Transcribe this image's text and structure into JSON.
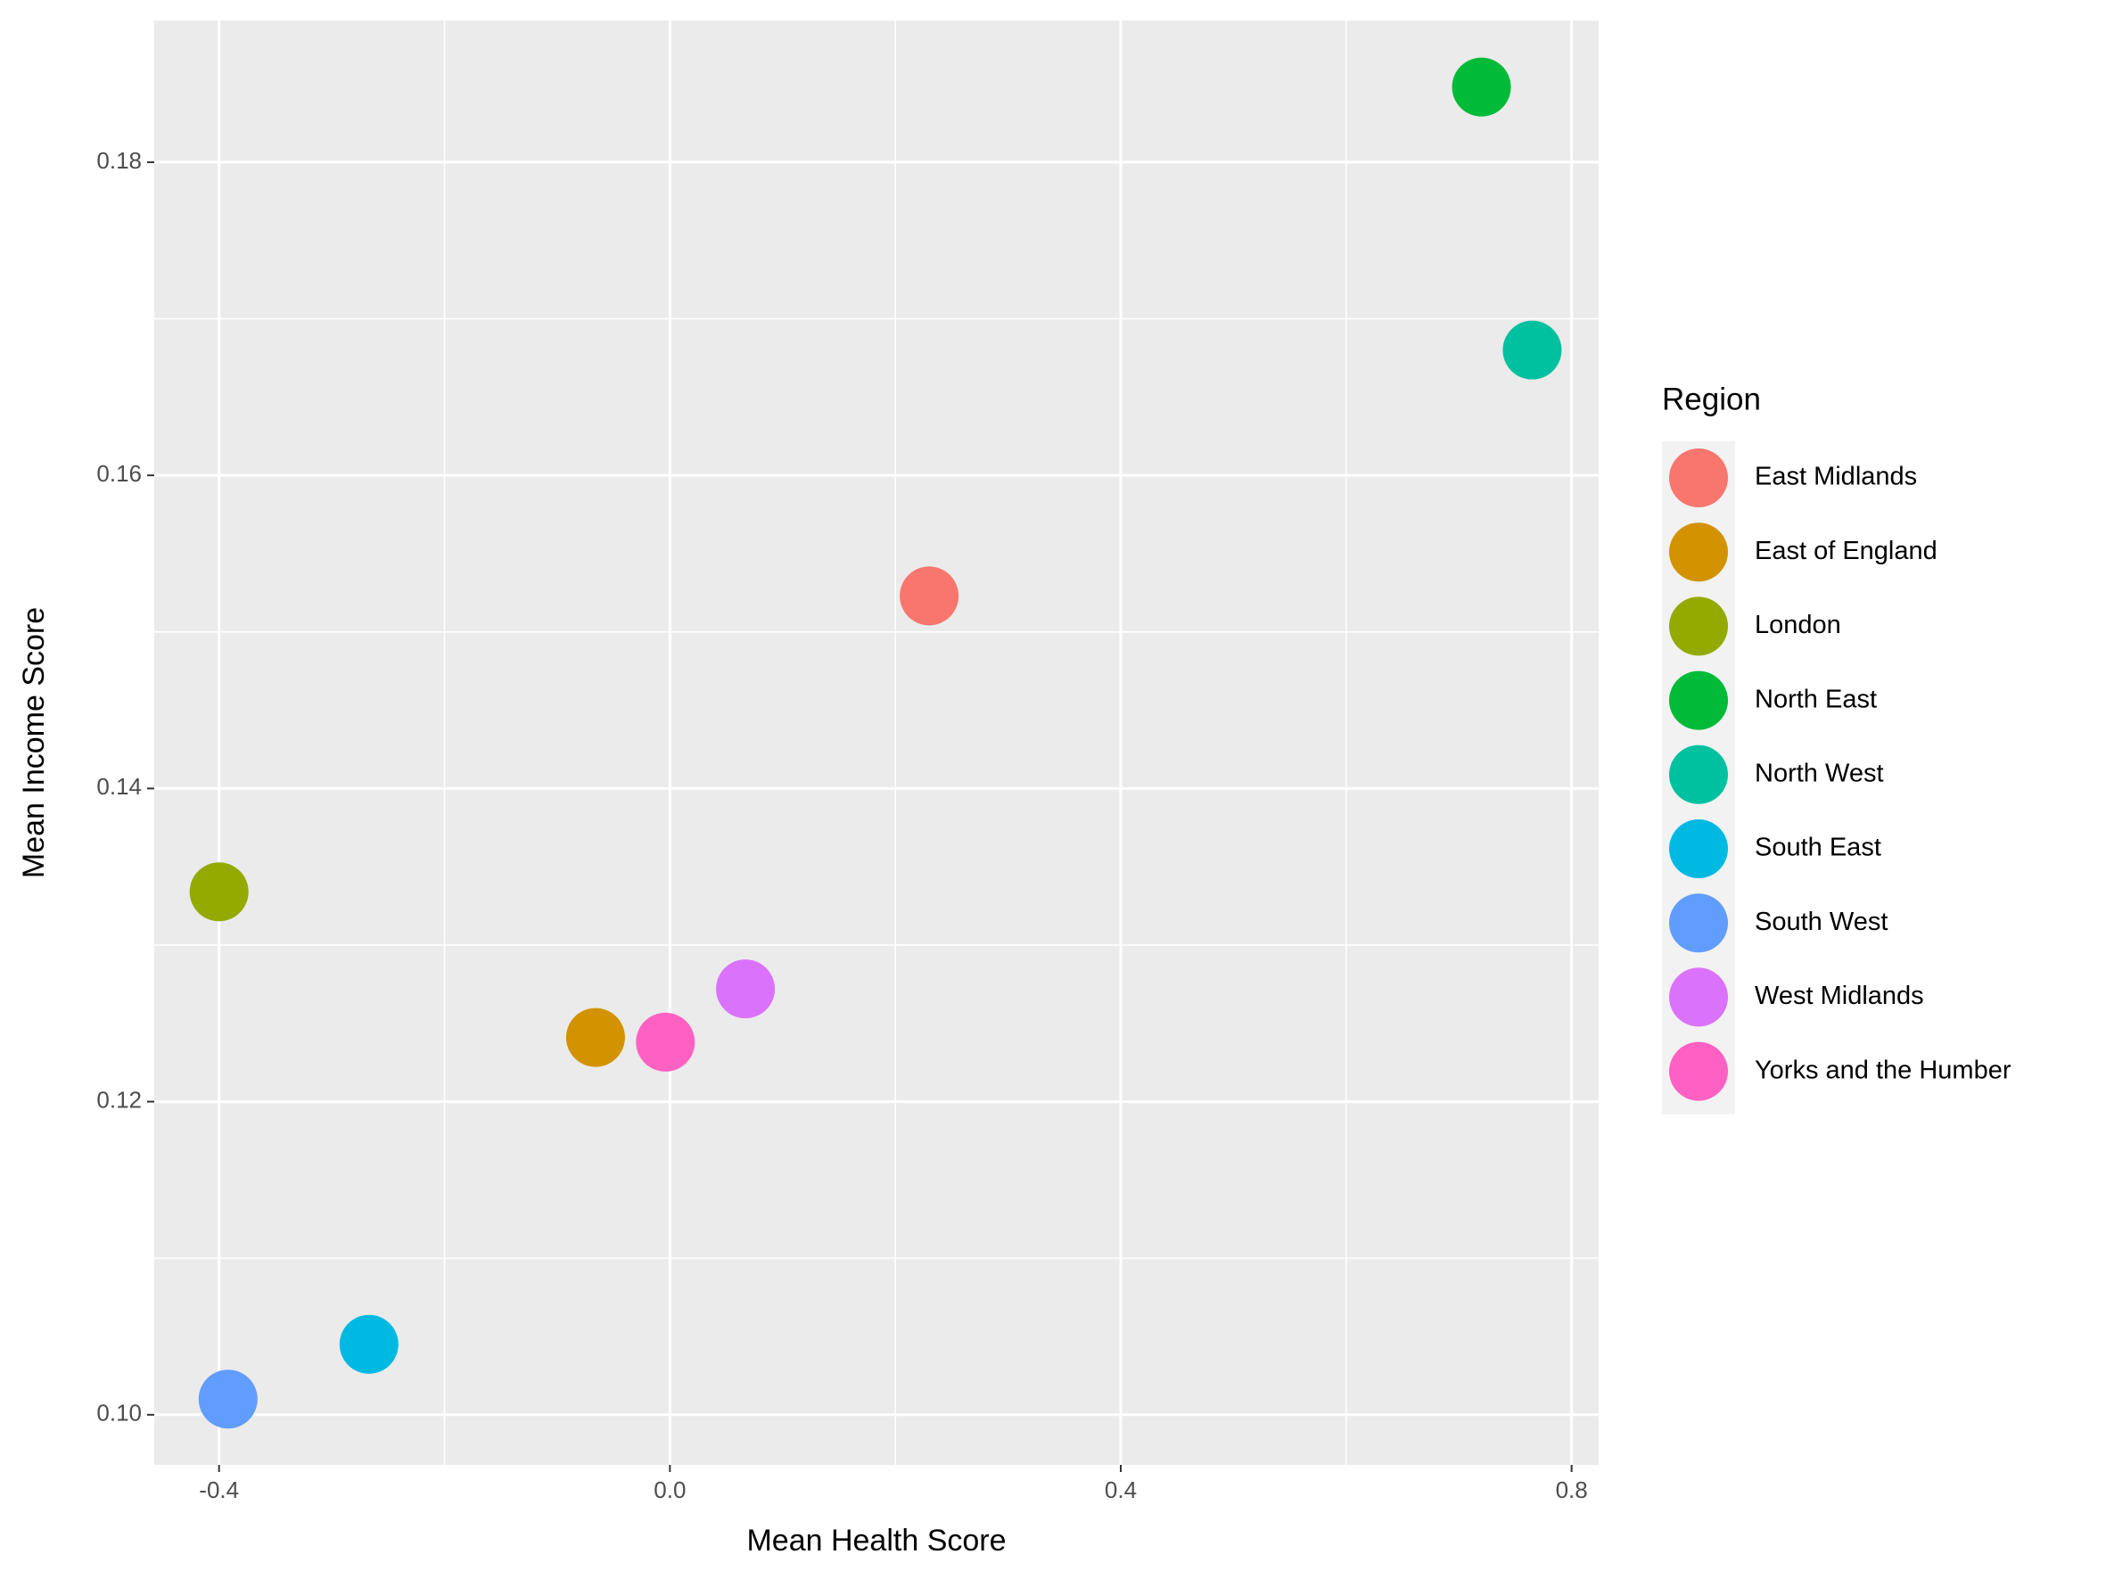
{
  "chart_data": {
    "type": "scatter",
    "x_label": "Mean Health Score",
    "y_label": "Mean Income Score",
    "legend_title": "Region",
    "legend_position": "right",
    "grid": true,
    "panel_color": "#ebebeb",
    "xlim": [
      -0.4575,
      0.824
    ],
    "ylim": [
      0.0968,
      0.18905
    ],
    "xticks": [
      -0.4,
      {
        "value": 0,
        "label": "0.0"
      },
      0.4,
      0.8
    ],
    "yticks": [
      {
        "value": 0.1,
        "label": "0.10"
      },
      0.12,
      0.14,
      0.16,
      0.18
    ],
    "series": [
      {
        "name": "East Midlands",
        "color": "#f8766d",
        "x": [
          0.23
        ],
        "values": [
          0.1523
        ]
      },
      {
        "name": "East of England",
        "color": "#d39200",
        "x": [
          -0.066
        ],
        "values": [
          0.1241
        ]
      },
      {
        "name": "London",
        "color": "#93aa00",
        "x": [
          -0.4
        ],
        "values": [
          0.1334
        ]
      },
      {
        "name": "North East",
        "color": "#00ba38",
        "x": [
          0.72
        ],
        "values": [
          0.1848
        ]
      },
      {
        "name": "North West",
        "color": "#00c19f",
        "x": [
          0.765
        ],
        "values": [
          0.168
        ]
      },
      {
        "name": "South East",
        "color": "#00b9e3",
        "x": [
          -0.267
        ],
        "values": [
          0.1045
        ]
      },
      {
        "name": "South West",
        "color": "#619cff",
        "x": [
          -0.392
        ],
        "values": [
          0.101
        ]
      },
      {
        "name": "West Midlands",
        "color": "#db72fb",
        "x": [
          0.067
        ],
        "values": [
          0.1272
        ]
      },
      {
        "name": "Yorks and the Humber",
        "color": "#ff61c3",
        "x": [
          -0.004
        ],
        "values": [
          0.1238
        ]
      }
    ]
  }
}
